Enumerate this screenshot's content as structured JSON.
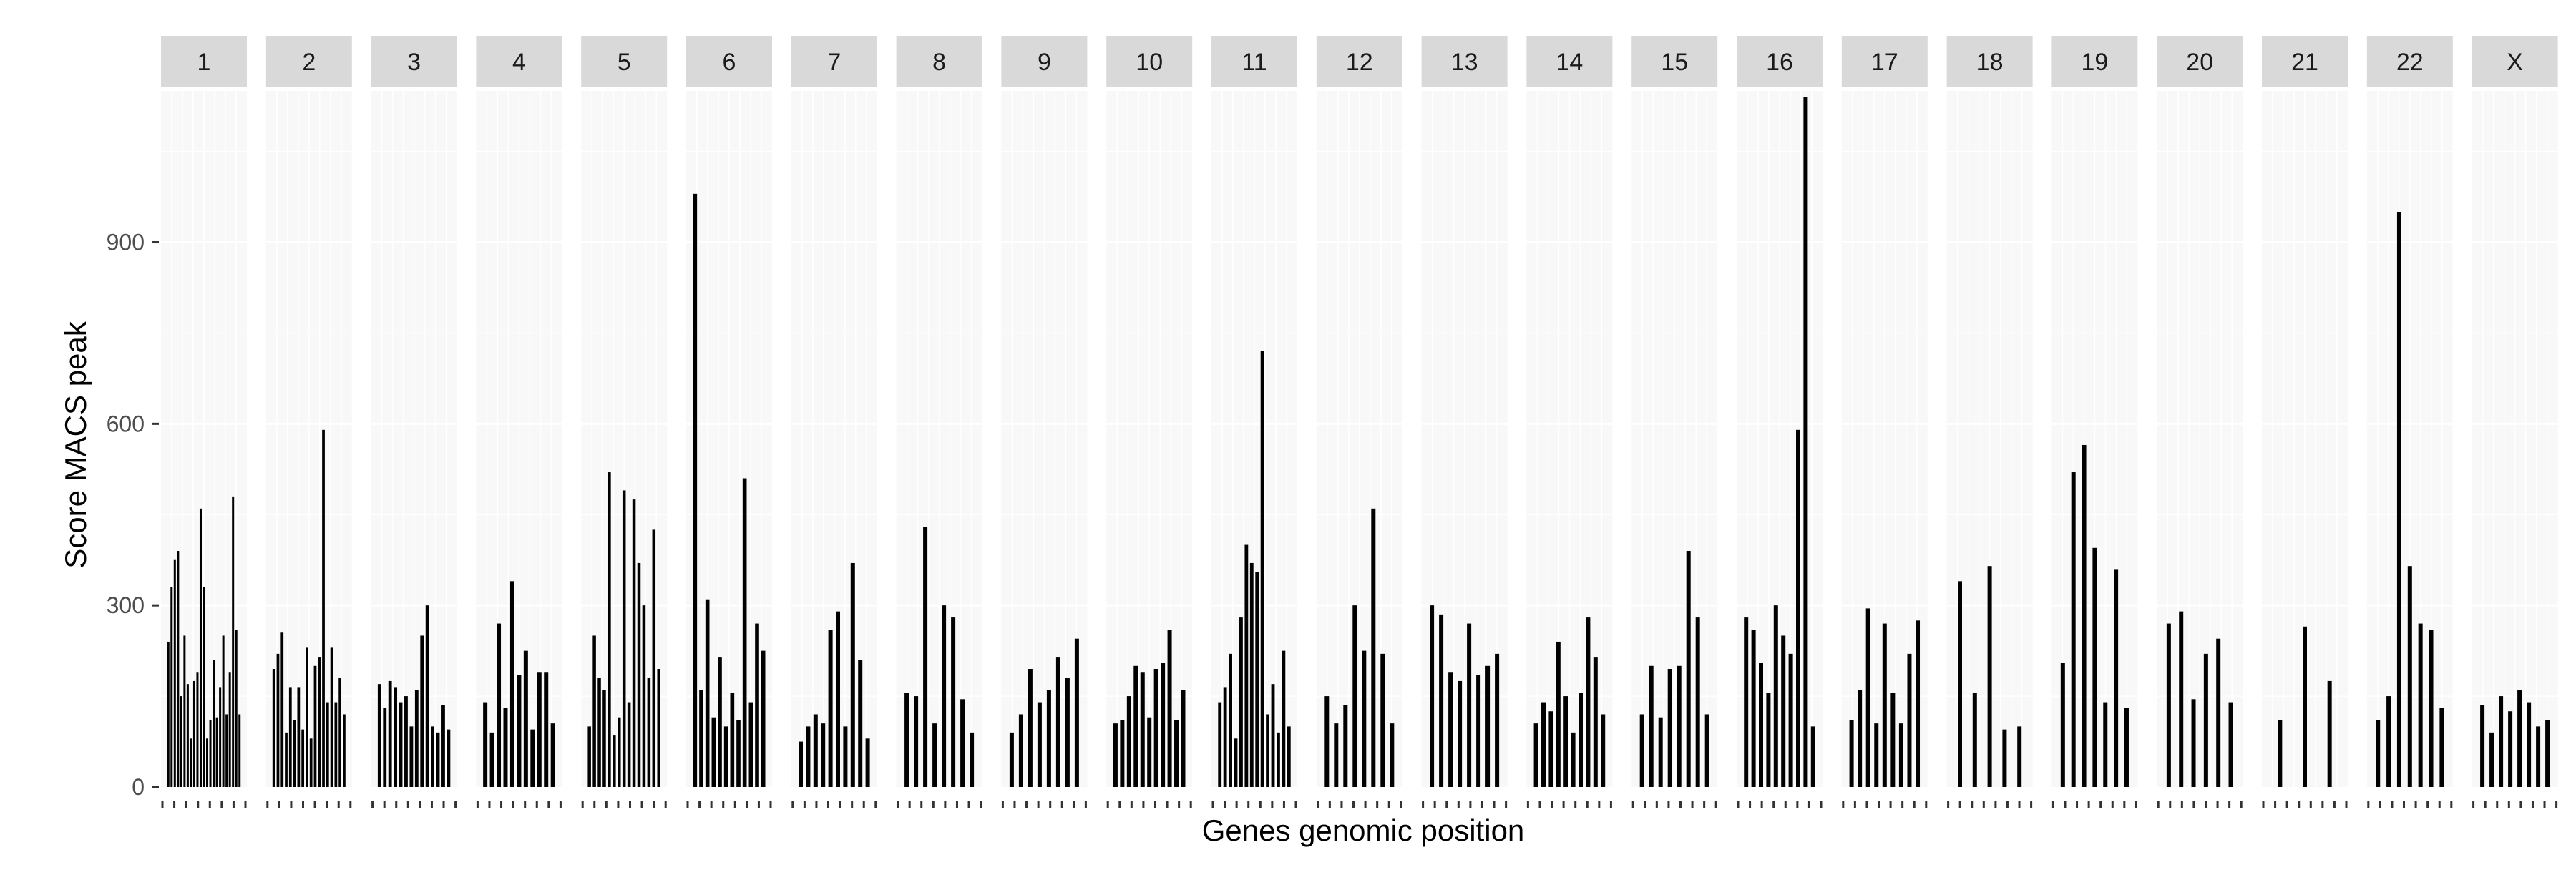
{
  "chart_data": {
    "type": "bar",
    "title": "",
    "xlabel": "Genes genomic position",
    "ylabel": "Score MACS peak",
    "ylim": [
      0,
      1150
    ],
    "yticks": [
      0,
      300,
      600,
      900
    ],
    "grid": true,
    "legend": "none",
    "facets": [
      {
        "label": "1",
        "values": [
          240,
          330,
          375,
          390,
          150,
          250,
          170,
          80,
          175,
          190,
          460,
          330,
          80,
          110,
          210,
          115,
          165,
          250,
          120,
          190,
          480,
          260,
          120
        ]
      },
      {
        "label": "2",
        "values": [
          195,
          220,
          255,
          90,
          165,
          110,
          165,
          95,
          230,
          80,
          200,
          215,
          590,
          140,
          230,
          140,
          180,
          120
        ]
      },
      {
        "label": "3",
        "values": [
          170,
          130,
          175,
          165,
          140,
          150,
          100,
          160,
          250,
          300,
          100,
          90,
          135,
          95
        ]
      },
      {
        "label": "4",
        "values": [
          140,
          90,
          270,
          130,
          340,
          185,
          225,
          95,
          190,
          190,
          105
        ]
      },
      {
        "label": "5",
        "values": [
          100,
          250,
          180,
          160,
          520,
          85,
          115,
          490,
          140,
          475,
          370,
          300,
          180,
          425,
          195
        ]
      },
      {
        "label": "6",
        "values": [
          980,
          160,
          310,
          115,
          215,
          100,
          155,
          110,
          510,
          140,
          270,
          225
        ]
      },
      {
        "label": "7",
        "values": [
          75,
          100,
          120,
          105,
          260,
          290,
          100,
          370,
          210,
          80
        ]
      },
      {
        "label": "8",
        "values": [
          155,
          150,
          430,
          105,
          300,
          280,
          145,
          90
        ]
      },
      {
        "label": "9",
        "values": [
          90,
          120,
          195,
          140,
          160,
          215,
          180,
          245
        ]
      },
      {
        "label": "10",
        "values": [
          105,
          110,
          150,
          200,
          190,
          115,
          195,
          205,
          260,
          110,
          160
        ]
      },
      {
        "label": "11",
        "values": [
          140,
          165,
          220,
          80,
          280,
          400,
          370,
          355,
          720,
          120,
          170,
          90,
          225,
          100
        ]
      },
      {
        "label": "12",
        "values": [
          150,
          105,
          135,
          300,
          225,
          460,
          220,
          105
        ]
      },
      {
        "label": "13",
        "values": [
          300,
          285,
          190,
          175,
          270,
          185,
          200,
          220
        ]
      },
      {
        "label": "14",
        "values": [
          105,
          140,
          125,
          240,
          150,
          90,
          155,
          280,
          215,
          120
        ]
      },
      {
        "label": "15",
        "values": [
          120,
          200,
          115,
          195,
          200,
          390,
          280,
          120
        ]
      },
      {
        "label": "16",
        "values": [
          280,
          260,
          205,
          155,
          300,
          250,
          220,
          590,
          1140,
          100
        ]
      },
      {
        "label": "17",
        "values": [
          110,
          160,
          295,
          105,
          270,
          155,
          105,
          220,
          275
        ]
      },
      {
        "label": "18",
        "values": [
          340,
          155,
          365,
          95,
          100
        ]
      },
      {
        "label": "19",
        "values": [
          205,
          520,
          565,
          395,
          140,
          360,
          130
        ]
      },
      {
        "label": "20",
        "values": [
          270,
          290,
          145,
          220,
          245,
          140
        ]
      },
      {
        "label": "21",
        "values": [
          110,
          265,
          175
        ]
      },
      {
        "label": "22",
        "values": [
          110,
          150,
          950,
          365,
          270,
          260,
          130
        ]
      },
      {
        "label": "X",
        "values": [
          135,
          90,
          150,
          125,
          160,
          140,
          100,
          110
        ]
      }
    ]
  }
}
